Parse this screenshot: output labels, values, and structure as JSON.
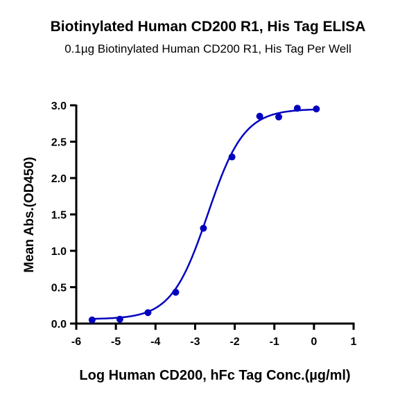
{
  "chart_data": {
    "type": "scatter",
    "title": "Biotinylated Human CD200 R1, His Tag ELISA",
    "subtitle": "0.1µg Biotinylated Human CD200 R1, His Tag Per Well",
    "xlabel": "Log Human CD200, hFc Tag Conc.(µg/ml)",
    "ylabel": "Mean Abs.(OD450)",
    "xlim": [
      -6,
      1
    ],
    "ylim": [
      0,
      3.0
    ],
    "xticks": [
      "-6",
      "-5",
      "-4",
      "-3",
      "-2",
      "-1",
      "0",
      "1"
    ],
    "yticks": [
      "0.0",
      "0.5",
      "1.0",
      "1.5",
      "2.0",
      "2.5",
      "3.0"
    ],
    "grid": false,
    "series": [
      {
        "name": "OD450",
        "color": "#0000c0",
        "x": [
          -5.6,
          -4.9,
          -4.19,
          -3.49,
          -2.79,
          -2.07,
          -1.37,
          -0.89,
          -0.42,
          0.06
        ],
        "y": [
          0.05,
          0.06,
          0.15,
          0.43,
          1.31,
          2.29,
          2.85,
          2.84,
          2.96,
          2.95
        ],
        "fit": {
          "model": "4PL",
          "bottom": 0.06,
          "top": 2.95,
          "logEC50": -2.68,
          "hill": 0.95
        }
      }
    ]
  }
}
